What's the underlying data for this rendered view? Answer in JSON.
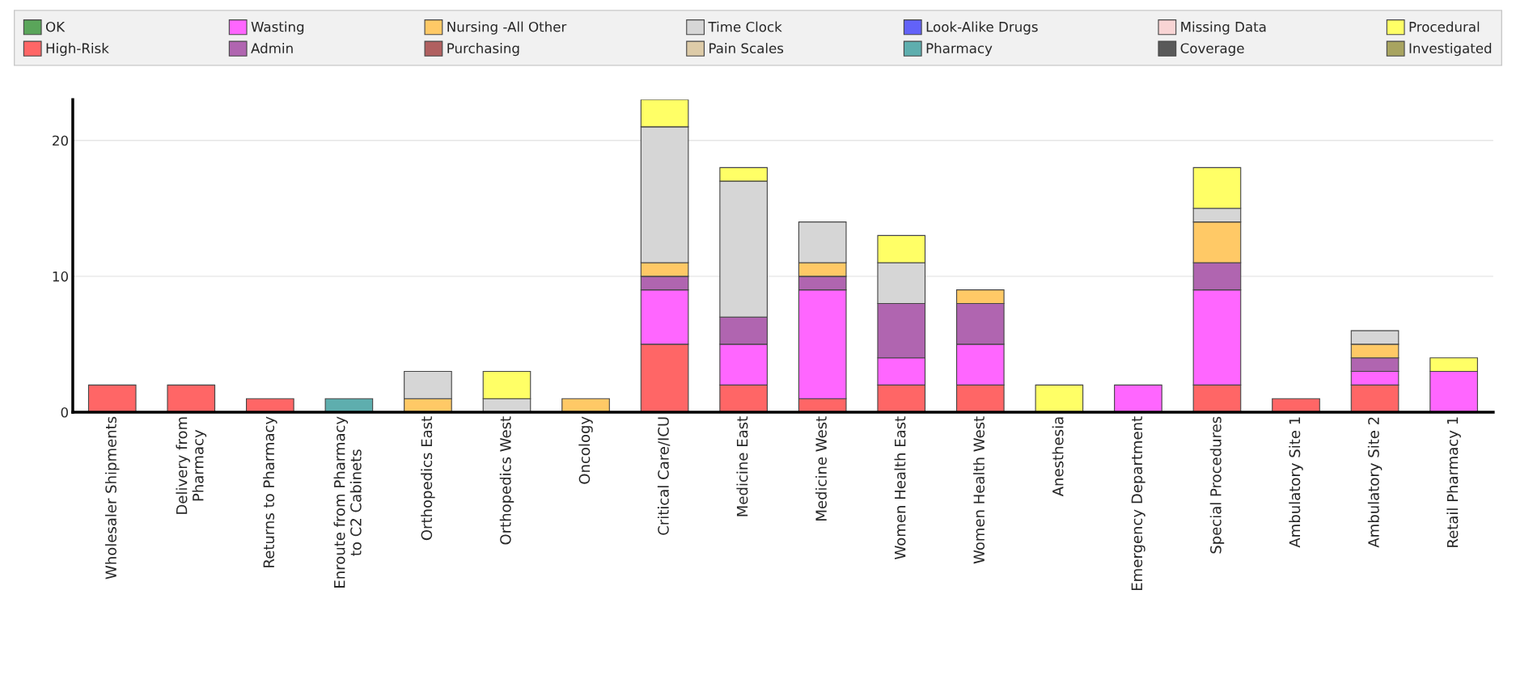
{
  "chart_data": {
    "type": "bar",
    "stacked": true,
    "categories": [
      "Wholesaler Shipments",
      "Delivery from\nPharmacy",
      "Returns to Pharmacy",
      "Enroute from Pharmacy\nto C2 Cabinets",
      "Orthopedics East",
      "Orthopedics West",
      "Oncology",
      "Critical Care/ICU",
      "Medicine East",
      "Medicine West",
      "Women Health East",
      "Women Health West",
      "Anesthesia",
      "Emergency Department",
      "Special Procedures",
      "Ambulatory Site 1",
      "Ambulatory Site 2",
      "Retail Pharmacy 1"
    ],
    "series": [
      {
        "name": "OK",
        "color": "#5aa55a",
        "values": [
          0,
          0,
          0,
          0,
          0,
          0,
          0,
          0,
          0,
          0,
          0,
          0,
          0,
          0,
          0,
          0,
          0,
          0
        ]
      },
      {
        "name": "High-Risk",
        "color": "#ff6666",
        "values": [
          2,
          2,
          1,
          0,
          0,
          0,
          0,
          5,
          2,
          1,
          2,
          2,
          0,
          0,
          2,
          1,
          2,
          0
        ]
      },
      {
        "name": "Wasting",
        "color": "#ff66ff",
        "values": [
          0,
          0,
          0,
          0,
          0,
          0,
          0,
          4,
          3,
          8,
          2,
          3,
          0,
          2,
          7,
          0,
          1,
          3
        ]
      },
      {
        "name": "Admin",
        "color": "#b065b0",
        "values": [
          0,
          0,
          0,
          0,
          0,
          0,
          0,
          1,
          2,
          1,
          4,
          3,
          0,
          0,
          2,
          0,
          1,
          0
        ]
      },
      {
        "name": "Nursing -All Other",
        "color": "#ffc966",
        "values": [
          0,
          0,
          0,
          0,
          1,
          0,
          1,
          1,
          0,
          1,
          0,
          1,
          0,
          0,
          3,
          0,
          1,
          0
        ]
      },
      {
        "name": "Purchasing",
        "color": "#b06060",
        "values": [
          0,
          0,
          0,
          0,
          0,
          0,
          0,
          0,
          0,
          0,
          0,
          0,
          0,
          0,
          0,
          0,
          0,
          0
        ]
      },
      {
        "name": "Time Clock",
        "color": "#d6d6d6",
        "values": [
          0,
          0,
          0,
          0,
          2,
          1,
          0,
          10,
          10,
          3,
          3,
          0,
          0,
          0,
          1,
          0,
          1,
          0
        ]
      },
      {
        "name": "Pain Scales",
        "color": "#ddcba8",
        "values": [
          0,
          0,
          0,
          0,
          0,
          0,
          0,
          0,
          0,
          0,
          0,
          0,
          0,
          0,
          0,
          0,
          0,
          0
        ]
      },
      {
        "name": "Look-Alike Drugs",
        "color": "#6262f8",
        "values": [
          0,
          0,
          0,
          0,
          0,
          0,
          0,
          0,
          0,
          0,
          0,
          0,
          0,
          0,
          0,
          0,
          0,
          0
        ]
      },
      {
        "name": "Pharmacy",
        "color": "#5eaeae",
        "values": [
          0,
          0,
          0,
          1,
          0,
          0,
          0,
          0,
          0,
          0,
          0,
          0,
          0,
          0,
          0,
          0,
          0,
          0
        ]
      },
      {
        "name": "Missing Data",
        "color": "#f8d4d4",
        "values": [
          0,
          0,
          0,
          0,
          0,
          0,
          0,
          0,
          0,
          0,
          0,
          0,
          0,
          0,
          0,
          0,
          0,
          0
        ]
      },
      {
        "name": "Coverage",
        "color": "#595959",
        "values": [
          0,
          0,
          0,
          0,
          0,
          0,
          0,
          0,
          0,
          0,
          0,
          0,
          0,
          0,
          0,
          0,
          0,
          0
        ]
      },
      {
        "name": "Procedural",
        "color": "#ffff66",
        "values": [
          0,
          0,
          0,
          0,
          0,
          2,
          0,
          2,
          1,
          0,
          2,
          0,
          2,
          0,
          3,
          0,
          0,
          1
        ]
      },
      {
        "name": "Investigated",
        "color": "#a8a460",
        "values": [
          0,
          0,
          0,
          0,
          0,
          0,
          0,
          0,
          0,
          0,
          0,
          0,
          0,
          0,
          0,
          0,
          0,
          0
        ]
      }
    ],
    "ylim": [
      0,
      23
    ],
    "yticks": [
      0,
      10,
      20
    ],
    "grid": "y",
    "legend": "top"
  }
}
